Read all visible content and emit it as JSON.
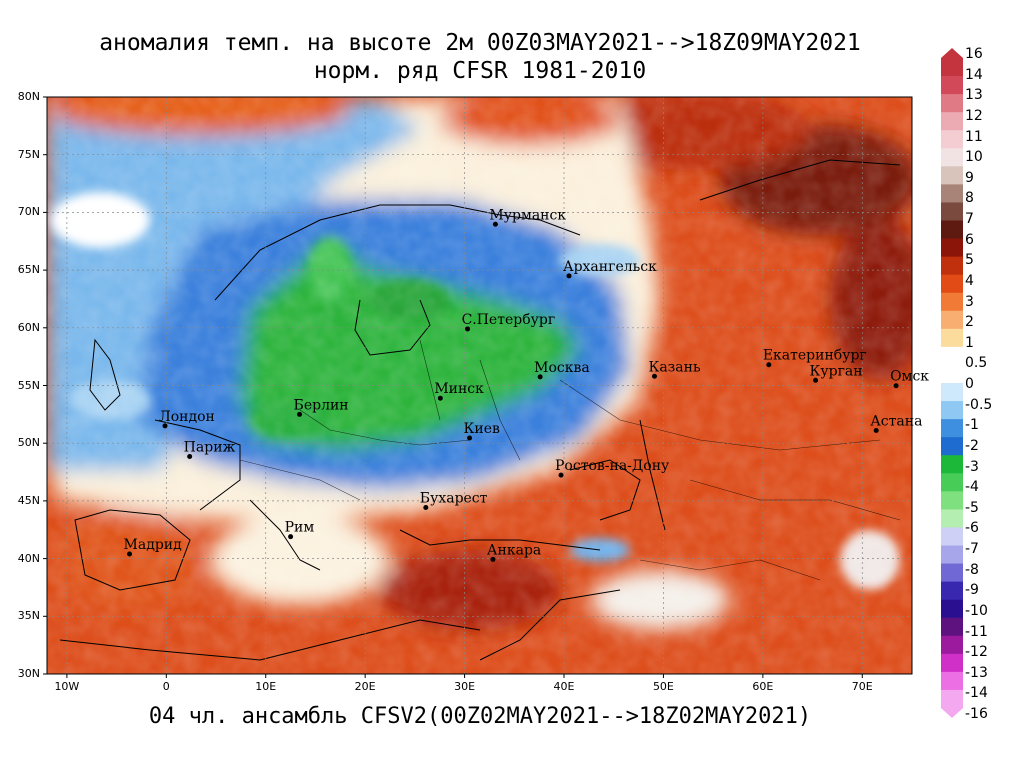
{
  "title_line1": "аномалия темп. на высоте 2м 00Z03MAY2021-->18Z09MAY2021",
  "title_line2": "норм. ряд CFSR 1981-2010",
  "footer": "04 чл. ансамбль CFSV2(00Z02MAY2021-->18Z02MAY2021)",
  "lat_labels": [
    "80N",
    "75N",
    "70N",
    "65N",
    "60N",
    "55N",
    "50N",
    "45N",
    "40N",
    "35N",
    "30N"
  ],
  "lat_values": [
    80,
    75,
    70,
    65,
    60,
    55,
    50,
    45,
    40,
    35,
    30
  ],
  "lon_labels": [
    "10W",
    "0",
    "10E",
    "20E",
    "30E",
    "40E",
    "50E",
    "60E",
    "70E"
  ],
  "lon_values": [
    -10,
    0,
    10,
    20,
    30,
    40,
    50,
    60,
    70
  ],
  "extent": {
    "lon_min": -12,
    "lon_max": 75,
    "lat_min": 30,
    "lat_max": 80
  },
  "cities": [
    {
      "name": "Мурманск",
      "lon": 33.1,
      "lat": 68.97
    },
    {
      "name": "Архангельск",
      "lon": 40.5,
      "lat": 64.5
    },
    {
      "name": "С.Петербург",
      "lon": 30.3,
      "lat": 59.9
    },
    {
      "name": "Москва",
      "lon": 37.6,
      "lat": 55.75
    },
    {
      "name": "Казань",
      "lon": 49.1,
      "lat": 55.8
    },
    {
      "name": "Екатеринбург",
      "lon": 60.6,
      "lat": 56.8
    },
    {
      "name": "Курган",
      "lon": 65.3,
      "lat": 55.45
    },
    {
      "name": "Омск",
      "lon": 73.4,
      "lat": 54.98
    },
    {
      "name": "Астана",
      "lon": 71.4,
      "lat": 51.1
    },
    {
      "name": "Минск",
      "lon": 27.56,
      "lat": 53.9
    },
    {
      "name": "Берлин",
      "lon": 13.4,
      "lat": 52.5
    },
    {
      "name": "Лондон",
      "lon": -0.13,
      "lat": 51.5
    },
    {
      "name": "Париж",
      "lon": 2.35,
      "lat": 48.85
    },
    {
      "name": "Киев",
      "lon": 30.5,
      "lat": 50.45
    },
    {
      "name": "Ростов-на-Дону",
      "lon": 39.7,
      "lat": 47.23
    },
    {
      "name": "Бухарест",
      "lon": 26.1,
      "lat": 44.43
    },
    {
      "name": "Мадрид",
      "lon": -3.7,
      "lat": 40.4
    },
    {
      "name": "Рим",
      "lon": 12.5,
      "lat": 41.9
    },
    {
      "name": "Анкара",
      "lon": 32.85,
      "lat": 39.93
    }
  ],
  "colorbar": {
    "labels": [
      "16",
      "14",
      "13",
      "12",
      "11",
      "10",
      "9",
      "8",
      "7",
      "6",
      "5",
      "4",
      "3",
      "2",
      "1",
      "0.5",
      "0",
      "-0.5",
      "-1",
      "-2",
      "-3",
      "-4",
      "-5",
      "-6",
      "-7",
      "-8",
      "-9",
      "-10",
      "-11",
      "-12",
      "-13",
      "-14",
      "-16"
    ],
    "colors": [
      "#c3343e",
      "#d24a5a",
      "#e07b86",
      "#ecaab2",
      "#f4cdd2",
      "#f1e2e4",
      "#d9c4bc",
      "#a88478",
      "#7a4a3e",
      "#5e1a10",
      "#8a1508",
      "#c0300c",
      "#e24a16",
      "#f07a36",
      "#f8ae70",
      "#fcdc9c",
      "#ffffff",
      "#ffffff",
      "#cde9fb",
      "#8ec8f3",
      "#3f8fe0",
      "#1f6cd0",
      "#1cb83a",
      "#48cc58",
      "#7ee07e",
      "#b4eeb0",
      "#cfd0f6",
      "#a8a6ea",
      "#7068d4",
      "#3828b0",
      "#2a1090",
      "#5e1280",
      "#9c1a9e",
      "#d030c8",
      "#ec70e4",
      "#f4a8f0"
    ]
  },
  "map_colors": {
    "land_warm": "#dd4e1c",
    "land_hot": "#a8240a",
    "land_very_hot": "#6a1406",
    "cold_blue": "#3e82dc",
    "cold_deep": "#1f60c4",
    "cold_green": "#2fb43e",
    "neutral": "#fbf2d8",
    "light_blue": "#a7d1f2",
    "ocean_blue": "#6fb0ea"
  }
}
